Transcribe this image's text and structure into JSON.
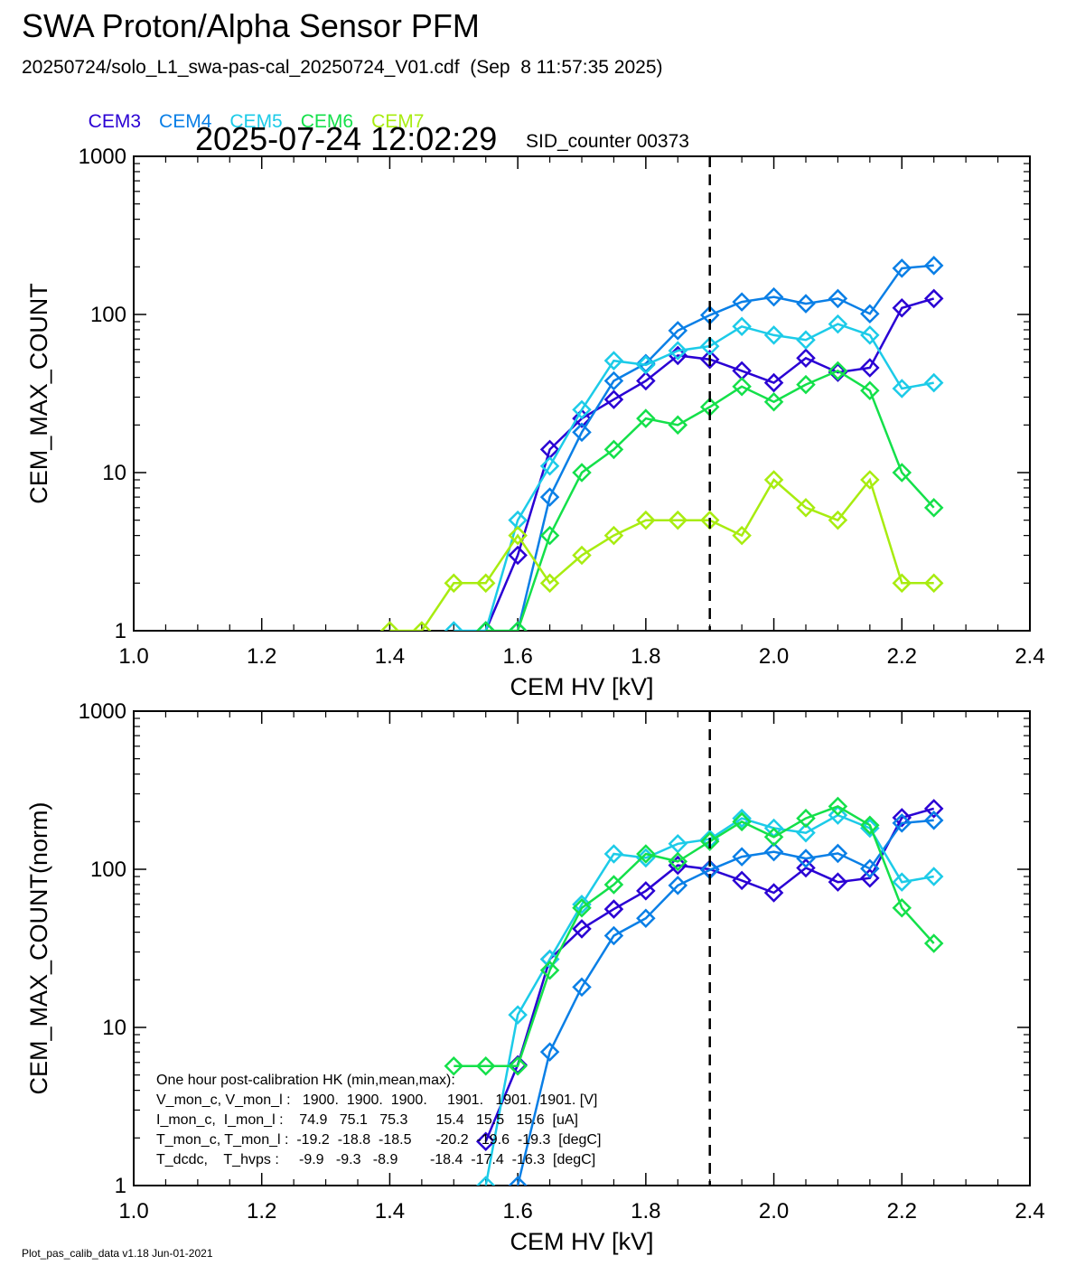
{
  "header": {
    "title": "SWA Proton/Alpha Sensor PFM",
    "subtitle": "20250724/solo_L1_swa-pas-cal_20250724_V01.cdf  (Sep  8 11:57:35 2025)",
    "timestamp": "2025-07-24 12:02:29",
    "sid_counter": "SID_counter 00373"
  },
  "legend": [
    {
      "name": "CEM3",
      "color": "#2a00d4"
    },
    {
      "name": "CEM4",
      "color": "#0a7fe6"
    },
    {
      "name": "CEM5",
      "color": "#1ccbe8"
    },
    {
      "name": "CEM6",
      "color": "#14e04a"
    },
    {
      "name": "CEM7",
      "color": "#a8ec10"
    }
  ],
  "footer": "Plot_pas_calib_data v1.18 Jun-01-2021",
  "hk_text": {
    "title": "One hour post-calibration HK (min,mean,max):",
    "rows": [
      "V_mon_c, V_mon_l :   1900.  1900.  1900.     1901.   1901.  1901. [V]",
      "I_mon_c,  I_mon_l :    74.9   75.1   75.3       15.4   15.5   15.6  [uA]",
      "T_mon_c, T_mon_l :  -19.2  -18.8  -18.5      -20.2  -19.6  -19.3  [degC]",
      "T_dcdc,    T_hvps :     -9.9   -9.3   -8.9        -18.4  -17.4  -16.3  [degC]"
    ]
  },
  "chart_data": [
    {
      "type": "line",
      "xlabel": "CEM HV [kV]",
      "ylabel": "CEM_MAX_COUNT",
      "xlim": [
        1.0,
        2.4
      ],
      "ylim": [
        1,
        1000
      ],
      "yscale": "log",
      "xticks": [
        "1.0",
        "1.2",
        "1.4",
        "1.6",
        "1.8",
        "2.0",
        "2.2",
        "2.4"
      ],
      "yticks": [
        "1",
        "10",
        "100",
        "1000"
      ],
      "vline_x": 1.9,
      "series": [
        {
          "name": "CEM3",
          "x": [
            1.55,
            1.6,
            1.65,
            1.7,
            1.75,
            1.8,
            1.85,
            1.9,
            1.95,
            2.0,
            2.05,
            2.1,
            2.15,
            2.2,
            2.25
          ],
          "values": [
            1,
            3,
            14,
            22,
            29,
            38,
            55,
            52,
            44,
            37,
            53,
            43,
            46,
            110,
            126
          ]
        },
        {
          "name": "CEM4",
          "x": [
            1.6,
            1.65,
            1.7,
            1.75,
            1.8,
            1.85,
            1.9,
            1.95,
            2.0,
            2.05,
            2.1,
            2.15,
            2.2,
            2.25
          ],
          "values": [
            1,
            7,
            18,
            38,
            49,
            79,
            99,
            120,
            129,
            117,
            126,
            101,
            196,
            204
          ]
        },
        {
          "name": "CEM5",
          "x": [
            1.5,
            1.55,
            1.6,
            1.65,
            1.7,
            1.75,
            1.8,
            1.85,
            1.9,
            1.95,
            2.0,
            2.05,
            2.1,
            2.15,
            2.2,
            2.25
          ],
          "values": [
            1,
            1,
            5,
            11,
            25,
            51,
            48,
            59,
            63,
            84,
            74,
            69,
            87,
            74,
            34,
            37
          ]
        },
        {
          "name": "CEM6",
          "x": [
            1.55,
            1.6,
            1.65,
            1.7,
            1.75,
            1.8,
            1.85,
            1.9,
            1.95,
            2.0,
            2.05,
            2.1,
            2.15,
            2.2,
            2.25
          ],
          "values": [
            1,
            1,
            4,
            10,
            14,
            22,
            20,
            26,
            35,
            28,
            36,
            44,
            33,
            10,
            6
          ]
        },
        {
          "name": "CEM7",
          "x": [
            1.4,
            1.45,
            1.5,
            1.55,
            1.6,
            1.65,
            1.7,
            1.75,
            1.8,
            1.85,
            1.9,
            1.95,
            2.0,
            2.05,
            2.1,
            2.15,
            2.2,
            2.25
          ],
          "values": [
            1,
            1,
            2,
            2,
            4,
            2,
            3,
            4,
            5,
            5,
            5,
            4,
            9,
            6,
            5,
            9,
            2,
            2
          ]
        }
      ]
    },
    {
      "type": "line",
      "xlabel": "CEM HV [kV]",
      "ylabel": "CEM_MAX_COUNT(norm)",
      "xlim": [
        1.0,
        2.4
      ],
      "ylim": [
        1,
        1000
      ],
      "yscale": "log",
      "xticks": [
        "1.0",
        "1.2",
        "1.4",
        "1.6",
        "1.8",
        "2.0",
        "2.2",
        "2.4"
      ],
      "yticks": [
        "1",
        "10",
        "100",
        "1000"
      ],
      "vline_x": 1.9,
      "series": [
        {
          "name": "CEM3",
          "x": [
            1.55,
            1.6,
            1.65,
            1.7,
            1.75,
            1.8,
            1.85,
            1.9,
            1.95,
            2.0,
            2.05,
            2.1,
            2.15,
            2.2,
            2.25
          ],
          "values": [
            1.9,
            5.8,
            27,
            42,
            56,
            73,
            106,
            100,
            85,
            71,
            102,
            83,
            88,
            212,
            242
          ]
        },
        {
          "name": "CEM4",
          "x": [
            1.6,
            1.65,
            1.7,
            1.75,
            1.8,
            1.85,
            1.9,
            1.95,
            2.0,
            2.05,
            2.1,
            2.15,
            2.2,
            2.25
          ],
          "values": [
            1.0,
            7.0,
            18,
            38,
            49,
            79,
            99,
            120,
            129,
            117,
            126,
            101,
            196,
            204
          ]
        },
        {
          "name": "CEM5",
          "x": [
            1.55,
            1.6,
            1.65,
            1.7,
            1.75,
            1.8,
            1.85,
            1.9,
            1.95,
            2.0,
            2.05,
            2.1,
            2.15,
            2.2,
            2.25
          ],
          "values": [
            1.0,
            12,
            27,
            60,
            125,
            118,
            145,
            155,
            210,
            182,
            170,
            220,
            182,
            83,
            90
          ]
        },
        {
          "name": "CEM6",
          "x": [
            1.5,
            1.55,
            1.6,
            1.65,
            1.7,
            1.75,
            1.8,
            1.85,
            1.9,
            1.95,
            2.0,
            2.05,
            2.1,
            2.15,
            2.2,
            2.25
          ],
          "values": [
            5.7,
            5.7,
            5.7,
            23,
            57,
            80,
            125,
            112,
            150,
            200,
            160,
            210,
            250,
            190,
            57,
            34
          ]
        }
      ]
    }
  ]
}
